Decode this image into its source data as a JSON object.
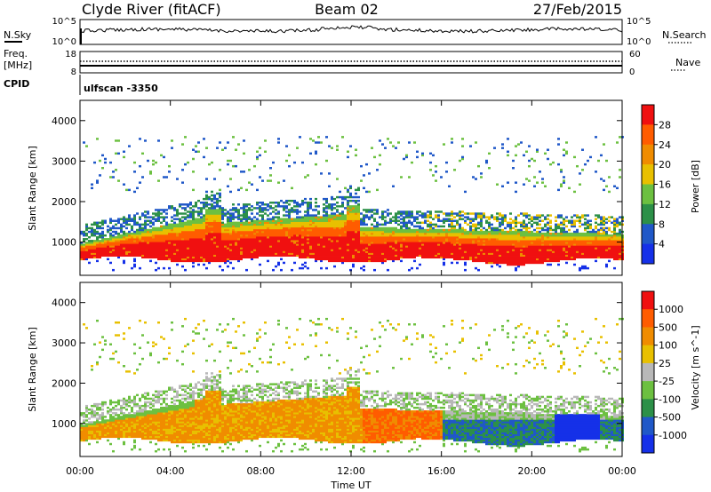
{
  "header": {
    "station": "Clyde River (fitACF)",
    "beam": "Beam 02",
    "date": "27/Feb/2015"
  },
  "top_panels": {
    "nsky_label": "N.Sky",
    "nsearch_label": "N.Search",
    "nsky_top": "10^5",
    "nsky_bottom": "10^0",
    "nsearch_top": "10^5",
    "nsearch_bottom": "10^0",
    "freq_label_1": "Freq.",
    "freq_label_2": "[MHz]",
    "freq_top": "18",
    "freq_bottom": "8",
    "nave_label": "Nave",
    "nave_top": "60",
    "nave_bottom": "0",
    "cpid_label": "CPID",
    "cpid_value": "ulfscan  -3350"
  },
  "chart_data": [
    {
      "type": "heatmap",
      "quantity": "Power",
      "ylabel": "Slant Range [km]",
      "ylim": [
        180,
        4500
      ],
      "yticks": [
        "1000",
        "2000",
        "3000",
        "4000"
      ],
      "xlim": [
        "00:00",
        "24:00"
      ],
      "colorbar_label": "Power [dB]",
      "colorbar_ticks": [
        "4",
        "8",
        "12",
        "16",
        "20",
        "24",
        "28"
      ],
      "colorbar_colors": [
        "#1530e8",
        "#2058c8",
        "#2c9048",
        "#6cc040",
        "#e8c000",
        "#f08c00",
        "#ff5c00",
        "#f01010"
      ],
      "regions": [
        {
          "name": "main backscatter band",
          "range_km": [
            600,
            1500
          ],
          "dominant": "28"
        },
        {
          "name": "upper edge band",
          "range_km": [
            1500,
            2100
          ],
          "dominant": "8-16"
        }
      ]
    },
    {
      "type": "heatmap",
      "quantity": "Velocity",
      "ylabel": "Slant Range [km]",
      "ylim": [
        180,
        4500
      ],
      "yticks": [
        "1000",
        "2000",
        "3000",
        "4000"
      ],
      "xlim": [
        "00:00",
        "24:00"
      ],
      "colorbar_label": "Velocity [m s^-1]",
      "colorbar_ticks": [
        "1000",
        "500",
        "100",
        "25",
        "-25",
        "-100",
        "-500",
        "-1000"
      ],
      "colorbar_colors": [
        "#1530e8",
        "#2058c8",
        "#2c9048",
        "#6cc040",
        "#b8b8b8",
        "#e8c000",
        "#f08c00",
        "#ff5c00",
        "#f01010"
      ]
    }
  ],
  "xaxis": {
    "ticks": [
      "00:00",
      "04:00",
      "08:00",
      "12:00",
      "16:00",
      "20:00",
      "00:00"
    ],
    "label": "Time UT"
  }
}
